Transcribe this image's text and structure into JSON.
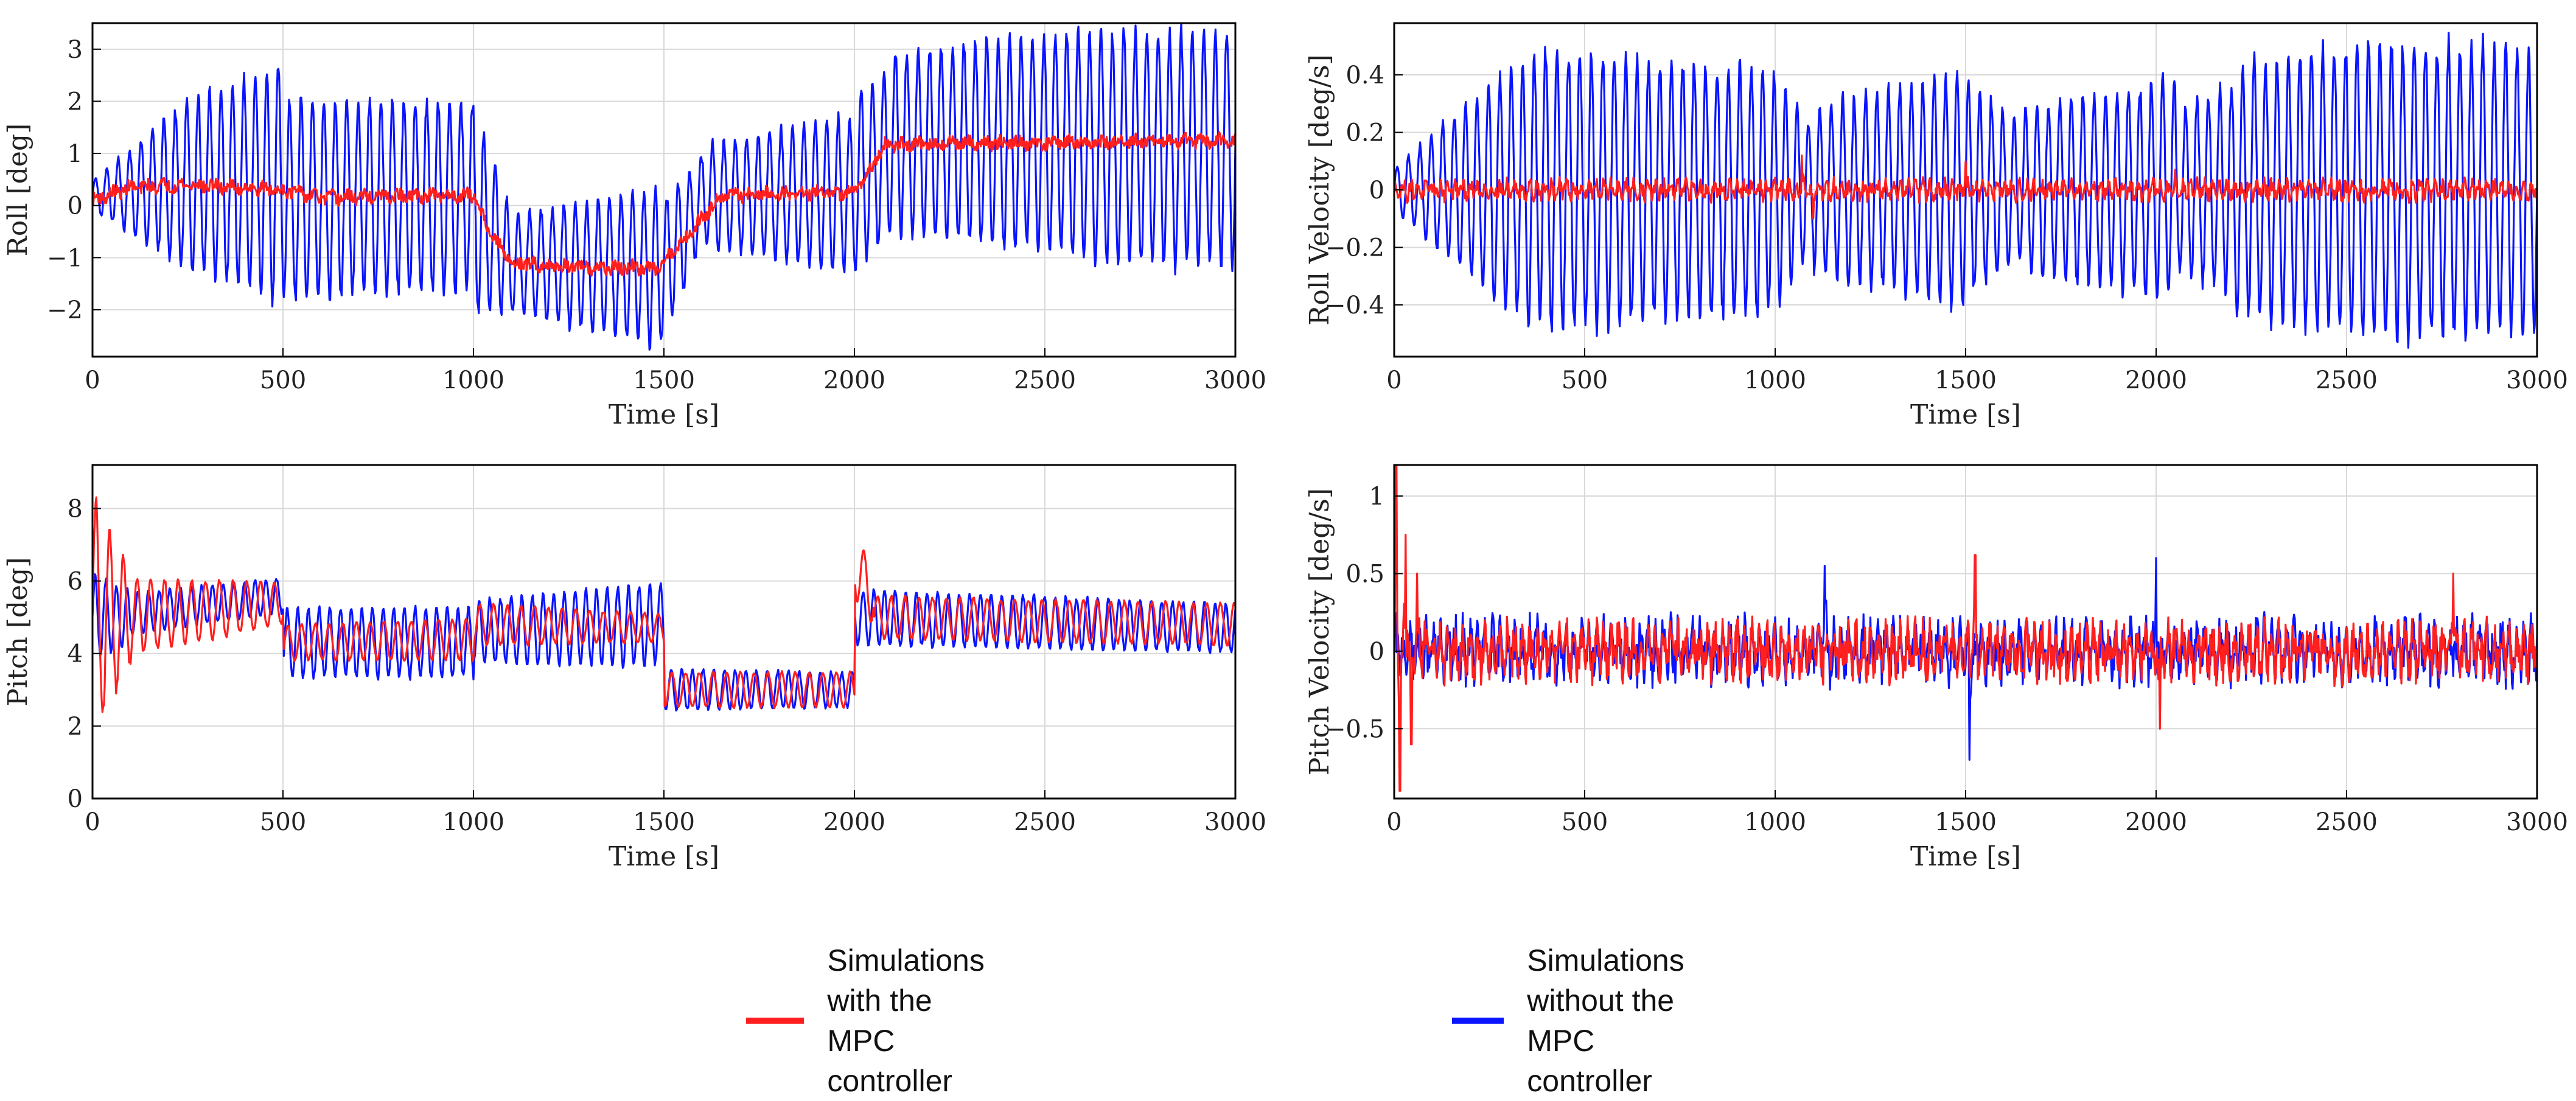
{
  "colors": {
    "with_mpc": "#ff1f1f",
    "without_mpc": "#0a14ff",
    "grid": "#d9d9d9",
    "axis": "#000000"
  },
  "legend": {
    "with_mpc": "Simulations with the\nMPC controller",
    "without_mpc": "Simulations without the\nMPC controller"
  },
  "chart_data": [
    {
      "id": "roll",
      "type": "line",
      "title": "",
      "xlabel": "Time [s]",
      "ylabel": "Roll [deg]",
      "xlim": [
        0,
        3000
      ],
      "ylim": [
        -2.9,
        3.5
      ],
      "xticks": [
        0,
        500,
        1000,
        1500,
        2000,
        2500,
        3000
      ],
      "yticks": [
        -2,
        -1,
        0,
        1,
        2,
        3
      ],
      "ytick_labels": [
        "−2",
        "−1",
        "0",
        "1",
        "2",
        "3"
      ],
      "grid": true,
      "series": [
        {
          "name": "Simulations without the MPC controller",
          "color_key": "without_mpc",
          "kind": "oscillation",
          "period_s": 30,
          "segments": [
            {
              "t0": 0,
              "t1": 250,
              "mean": [
                0.2,
                0.4
              ],
              "amp": [
                0.3,
                1.7
              ]
            },
            {
              "t0": 250,
              "t1": 500,
              "mean": [
                0.4,
                0.4
              ],
              "amp": [
                1.7,
                2.4
              ]
            },
            {
              "t0": 500,
              "t1": 1000,
              "mean": [
                0.1,
                0.2
              ],
              "amp": [
                2.0,
                1.9
              ]
            },
            {
              "t0": 1000,
              "t1": 1100,
              "mean": [
                0.0,
                -1.1
              ],
              "amp": [
                2.2,
                1.0
              ]
            },
            {
              "t0": 1100,
              "t1": 1500,
              "mean": [
                -1.1,
                -1.2
              ],
              "amp": [
                1.0,
                1.6
              ]
            },
            {
              "t0": 1500,
              "t1": 1600,
              "mean": [
                -1.2,
                0.1
              ],
              "amp": [
                1.4,
                0.9
              ]
            },
            {
              "t0": 1600,
              "t1": 2000,
              "mean": [
                0.2,
                0.2
              ],
              "amp": [
                1.0,
                1.6
              ]
            },
            {
              "t0": 2000,
              "t1": 2100,
              "mean": [
                0.4,
                1.1
              ],
              "amp": [
                1.8,
                1.7
              ]
            },
            {
              "t0": 2100,
              "t1": 2600,
              "mean": [
                1.2,
                1.2
              ],
              "amp": [
                1.8,
                2.3
              ]
            },
            {
              "t0": 2600,
              "t1": 3000,
              "mean": [
                1.1,
                1.1
              ],
              "amp": [
                2.3,
                2.4
              ]
            }
          ]
        },
        {
          "name": "Simulations with the MPC controller",
          "color_key": "with_mpc",
          "kind": "trend",
          "noise": 0.12,
          "points": [
            [
              0,
              0.1
            ],
            [
              100,
              0.35
            ],
            [
              250,
              0.4
            ],
            [
              500,
              0.3
            ],
            [
              600,
              0.15
            ],
            [
              1000,
              0.2
            ],
            [
              1050,
              -0.6
            ],
            [
              1100,
              -1.1
            ],
            [
              1300,
              -1.2
            ],
            [
              1480,
              -1.2
            ],
            [
              1560,
              -0.6
            ],
            [
              1650,
              0.2
            ],
            [
              2000,
              0.25
            ],
            [
              2080,
              1.15
            ],
            [
              2300,
              1.2
            ],
            [
              2600,
              1.2
            ],
            [
              3000,
              1.25
            ]
          ]
        }
      ]
    },
    {
      "id": "roll-velocity",
      "type": "line",
      "title": "",
      "xlabel": "Time [s]",
      "ylabel": "Roll Velocity [deg/s]",
      "xlim": [
        0,
        3000
      ],
      "ylim": [
        -0.58,
        0.58
      ],
      "xticks": [
        0,
        500,
        1000,
        1500,
        2000,
        2500,
        3000
      ],
      "yticks": [
        -0.4,
        -0.2,
        0,
        0.2,
        0.4
      ],
      "ytick_labels": [
        "−0.4",
        "−0.2",
        "0",
        "0.2",
        "0.4"
      ],
      "grid": true,
      "series": [
        {
          "name": "Simulations without the MPC controller",
          "color_key": "without_mpc",
          "kind": "oscillation",
          "period_s": 30,
          "segments": [
            {
              "t0": 0,
              "t1": 250,
              "mean": [
                0,
                0
              ],
              "amp": [
                0.08,
                0.38
              ]
            },
            {
              "t0": 250,
              "t1": 450,
              "mean": [
                0,
                0
              ],
              "amp": [
                0.4,
                0.54
              ]
            },
            {
              "t0": 450,
              "t1": 1000,
              "mean": [
                0,
                0
              ],
              "amp": [
                0.5,
                0.44
              ]
            },
            {
              "t0": 1000,
              "t1": 1100,
              "mean": [
                0,
                0
              ],
              "amp": [
                0.42,
                0.22
              ]
            },
            {
              "t0": 1100,
              "t1": 1500,
              "mean": [
                0,
                0
              ],
              "amp": [
                0.3,
                0.43
              ]
            },
            {
              "t0": 1500,
              "t1": 1650,
              "mean": [
                0,
                0
              ],
              "amp": [
                0.4,
                0.24
              ]
            },
            {
              "t0": 1650,
              "t1": 2050,
              "mean": [
                0,
                0
              ],
              "amp": [
                0.3,
                0.4
              ]
            },
            {
              "t0": 2050,
              "t1": 2200,
              "mean": [
                0,
                0
              ],
              "amp": [
                0.3,
                0.38
              ]
            },
            {
              "t0": 2200,
              "t1": 2600,
              "mean": [
                0,
                0
              ],
              "amp": [
                0.45,
                0.55
              ]
            },
            {
              "t0": 2600,
              "t1": 3000,
              "mean": [
                0,
                0
              ],
              "amp": [
                0.54,
                0.52
              ]
            }
          ]
        },
        {
          "name": "Simulations with the MPC controller",
          "color_key": "with_mpc",
          "kind": "noise",
          "amp": 0.04,
          "spikes": [
            [
              1070,
              0.12
            ],
            [
              1100,
              -0.1
            ],
            [
              1500,
              0.1
            ],
            [
              2050,
              0.07
            ]
          ]
        }
      ]
    },
    {
      "id": "pitch",
      "type": "line",
      "title": "",
      "xlabel": "Time [s]",
      "ylabel": "Pitch [deg]",
      "xlim": [
        0,
        3000
      ],
      "ylim": [
        0,
        9.2
      ],
      "xticks": [
        0,
        500,
        1000,
        1500,
        2000,
        2500,
        3000
      ],
      "yticks": [
        0,
        2,
        4,
        6,
        8
      ],
      "ytick_labels": [
        "0",
        "2",
        "4",
        "6",
        "8"
      ],
      "grid": true,
      "series": [
        {
          "name": "Simulations without the MPC controller",
          "color_key": "without_mpc",
          "kind": "oscillation",
          "period_s": 28,
          "segments": [
            {
              "t0": 0,
              "t1": 100,
              "mean": [
                5.0,
                5.0
              ],
              "amp": [
                1.2,
                0.8
              ]
            },
            {
              "t0": 100,
              "t1": 500,
              "mean": [
                5.1,
                5.6
              ],
              "amp": [
                0.6,
                0.5
              ]
            },
            {
              "t0": 500,
              "t1": 1000,
              "mean": [
                4.3,
                4.3
              ],
              "amp": [
                1.0,
                1.0
              ]
            },
            {
              "t0": 1000,
              "t1": 1500,
              "mean": [
                4.6,
                4.8
              ],
              "amp": [
                0.9,
                1.2
              ]
            },
            {
              "t0": 1500,
              "t1": 2000,
              "mean": [
                3.0,
                3.0
              ],
              "amp": [
                0.6,
                0.5
              ]
            },
            {
              "t0": 2000,
              "t1": 3000,
              "mean": [
                5.0,
                4.7
              ],
              "amp": [
                0.8,
                0.7
              ]
            }
          ]
        },
        {
          "name": "Simulations with the MPC controller",
          "color_key": "with_mpc",
          "kind": "oscillation",
          "period_s": 36,
          "segments": [
            {
              "t0": 0,
              "t1": 100,
              "mean": [
                5.0,
                5.0
              ],
              "amp": [
                3.5,
                1.3
              ]
            },
            {
              "t0": 100,
              "t1": 500,
              "mean": [
                5.0,
                5.4
              ],
              "amp": [
                1.1,
                0.6
              ]
            },
            {
              "t0": 500,
              "t1": 1000,
              "mean": [
                4.3,
                4.4
              ],
              "amp": [
                0.5,
                0.6
              ]
            },
            {
              "t0": 1000,
              "t1": 1500,
              "mean": [
                4.8,
                4.7
              ],
              "amp": [
                0.6,
                0.4
              ]
            },
            {
              "t0": 1500,
              "t1": 2000,
              "mean": [
                3.0,
                3.0
              ],
              "amp": [
                0.5,
                0.5
              ]
            },
            {
              "t0": 2000,
              "t1": 2050,
              "mean": [
                6.5,
                5.5
              ],
              "amp": [
                1.0,
                0.8
              ]
            },
            {
              "t0": 2050,
              "t1": 3000,
              "mean": [
                5.0,
                4.8
              ],
              "amp": [
                0.6,
                0.6
              ]
            }
          ]
        }
      ]
    },
    {
      "id": "pitch-velocity",
      "type": "line",
      "title": "",
      "xlabel": "Time [s]",
      "ylabel": "Pitch Velocity [deg/s]",
      "xlim": [
        0,
        3000
      ],
      "ylim": [
        -0.95,
        1.2
      ],
      "xticks": [
        0,
        500,
        1000,
        1500,
        2000,
        2500,
        3000
      ],
      "yticks": [
        -0.5,
        0,
        0.5,
        1
      ],
      "ytick_labels": [
        "−0.5",
        "0",
        "0.5",
        "1"
      ],
      "grid": true,
      "series": [
        {
          "name": "Simulations without the MPC controller",
          "color_key": "without_mpc",
          "kind": "noise",
          "amp": 0.22,
          "spikes": [
            [
              1130,
              0.55
            ],
            [
              1510,
              -0.7
            ],
            [
              2000,
              0.6
            ],
            [
              2010,
              -0.45
            ]
          ]
        },
        {
          "name": "Simulations with the MPC controller",
          "color_key": "with_mpc",
          "kind": "noise",
          "amp": 0.2,
          "spikes": [
            [
              5,
              1.2
            ],
            [
              15,
              -0.9
            ],
            [
              30,
              0.75
            ],
            [
              45,
              -0.6
            ],
            [
              60,
              0.5
            ],
            [
              1525,
              0.62
            ],
            [
              2780,
              0.5
            ],
            [
              2010,
              -0.5
            ]
          ]
        }
      ]
    }
  ]
}
